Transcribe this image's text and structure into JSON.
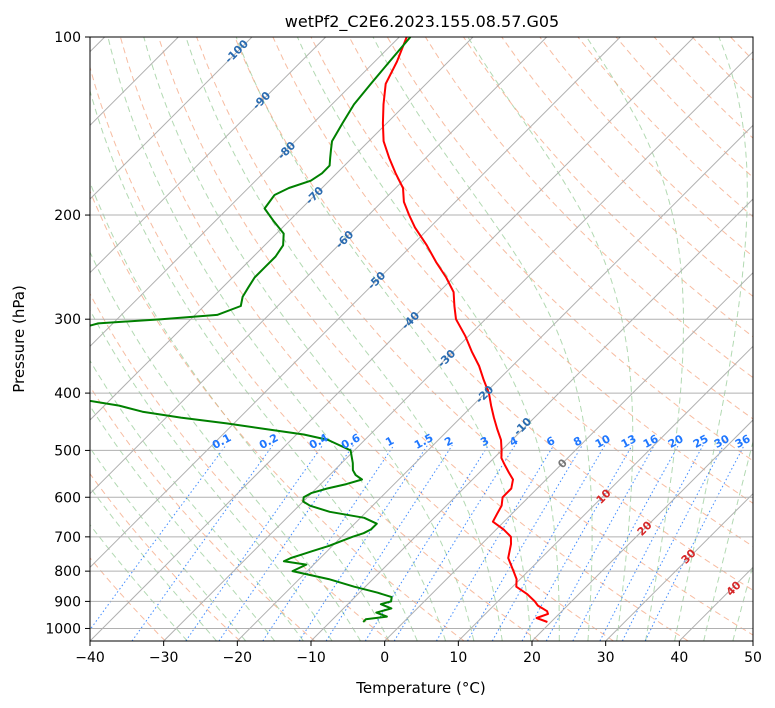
{
  "chart_data": {
    "type": "line",
    "title": "wetPf2_C2E6.2023.155.08.57.G05",
    "xlabel": "Temperature (°C)",
    "ylabel": "Pressure (hPa)",
    "xlim": [
      -40,
      50
    ],
    "ylim": [
      1050,
      100
    ],
    "y_scale": "log",
    "x_ticks": [
      -40,
      -30,
      -20,
      -10,
      0,
      10,
      20,
      30,
      40,
      50
    ],
    "y_ticks": [
      100,
      200,
      300,
      400,
      500,
      600,
      700,
      800,
      900,
      1000
    ],
    "grid": true,
    "skew": 45,
    "series": [
      {
        "key": "temperature",
        "color": "#ff0000",
        "pressure": [
          975,
          960,
          945,
          935,
          925,
          915,
          900,
          875,
          850,
          825,
          800,
          760,
          720,
          700,
          680,
          660,
          640,
          620,
          600,
          580,
          560,
          545,
          530,
          515,
          500,
          480,
          460,
          440,
          420,
          400,
          380,
          360,
          340,
          320,
          300,
          285,
          270,
          255,
          240,
          225,
          210,
          200,
          190,
          180,
          170,
          160,
          150,
          140,
          130,
          120,
          110,
          100
        ],
        "temperature": [
          19.5,
          17.5,
          18.5,
          18.0,
          17.0,
          16.0,
          15.0,
          13.0,
          10.5,
          9.5,
          8.0,
          5.5,
          4.0,
          3.0,
          1.0,
          -1.5,
          -2.0,
          -2.5,
          -3.5,
          -3.5,
          -4.5,
          -6.0,
          -7.5,
          -9.0,
          -10.0,
          -11.5,
          -13.5,
          -15.5,
          -17.5,
          -19.5,
          -22.0,
          -24.5,
          -27.5,
          -30.5,
          -34.0,
          -36.0,
          -38.0,
          -41.0,
          -44.5,
          -48.0,
          -52.0,
          -54.5,
          -57.0,
          -59.0,
          -62.0,
          -65.0,
          -68.0,
          -70.5,
          -73.0,
          -75.5,
          -77.0,
          -79.0
        ]
      },
      {
        "key": "dewpoint",
        "color": "#008000",
        "pressure": [
          975,
          965,
          955,
          940,
          925,
          910,
          900,
          885,
          870,
          850,
          825,
          800,
          780,
          770,
          760,
          750,
          740,
          725,
          700,
          690,
          680,
          665,
          650,
          635,
          620,
          610,
          600,
          590,
          580,
          570,
          560,
          550,
          540,
          525,
          500,
          480,
          470,
          460,
          450,
          440,
          430,
          420,
          410,
          400,
          395,
          385,
          375,
          365,
          355,
          345,
          335,
          325,
          315,
          305,
          300,
          295,
          285,
          275,
          265,
          255,
          245,
          235,
          225,
          215,
          205,
          195,
          185,
          180,
          175,
          170,
          165,
          160,
          155,
          150,
          140,
          130,
          120,
          110,
          100
        ],
        "temperature": [
          -5.5,
          -5.5,
          -3.0,
          -5.0,
          -3.5,
          -5.5,
          -4.5,
          -5.0,
          -7.5,
          -11.5,
          -16.0,
          -22.0,
          -21.0,
          -24.5,
          -24.0,
          -23.0,
          -22.0,
          -20.5,
          -18.5,
          -17.5,
          -17.0,
          -17.0,
          -19.5,
          -25.0,
          -28.5,
          -30.0,
          -30.5,
          -30.0,
          -28.5,
          -26.5,
          -25.0,
          -26.5,
          -27.5,
          -28.5,
          -30.5,
          -35.0,
          -39.0,
          -45.0,
          -51.0,
          -58.0,
          -64.0,
          -68.0,
          -74.0,
          -76.0,
          -76.5,
          -78.5,
          -80.5,
          -83.0,
          -84.5,
          -84.5,
          -84.5,
          -85.0,
          -85.0,
          -82.0,
          -74.0,
          -67.0,
          -65.0,
          -66.0,
          -66.5,
          -67.0,
          -67.0,
          -67.0,
          -67.5,
          -69.0,
          -72.0,
          -75.0,
          -75.5,
          -74.5,
          -72.5,
          -72.0,
          -72.0,
          -73.0,
          -74.0,
          -75.0,
          -76.0,
          -77.0,
          -77.5,
          -78.0,
          -78.5
        ]
      }
    ],
    "dry_adiabat_labels": [
      "-100",
      "-90",
      "-80",
      "-70",
      "-60",
      "-50",
      "-40",
      "-30",
      "-20",
      "-10"
    ],
    "moist_adiabat_labels": [
      "0",
      "10",
      "20",
      "30",
      "40"
    ],
    "mixing_ratio_labels": [
      "0.1",
      "0.2",
      "0.4",
      "0.6",
      "1",
      "1.5",
      "2",
      "3",
      "4",
      "6",
      "8",
      "10",
      "13",
      "16",
      "20",
      "25",
      "30",
      "36"
    ]
  }
}
